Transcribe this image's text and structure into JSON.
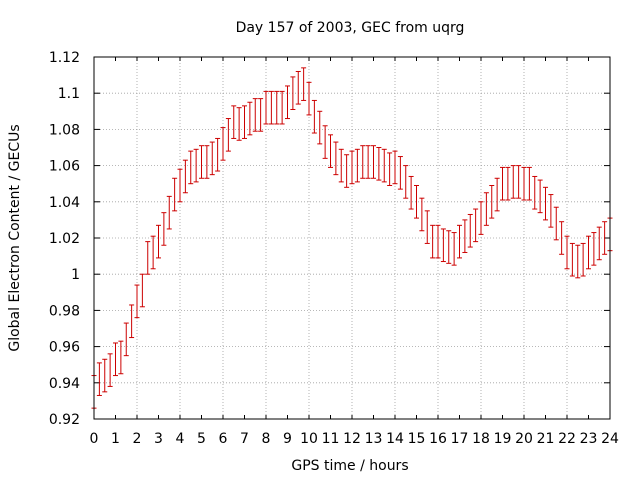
{
  "chart_data": {
    "type": "scatter",
    "title": "Day 157 of 2003, GEC from uqrg",
    "xlabel": "GPS time / hours",
    "ylabel": "Global Electron Content / GECUs",
    "xlim": [
      0,
      24
    ],
    "ylim": [
      0.92,
      1.12
    ],
    "grid": true,
    "x_ticks": [
      "0",
      "1",
      "2",
      "3",
      "4",
      "5",
      "6",
      "7",
      "8",
      "9",
      "10",
      "11",
      "12",
      "13",
      "14",
      "15",
      "16",
      "17",
      "18",
      "19",
      "20",
      "21",
      "22",
      "23",
      "24"
    ],
    "y_ticks": [
      "0.92",
      "0.94",
      "0.96",
      "0.98",
      "1",
      "1.02",
      "1.04",
      "1.06",
      "1.08",
      "1.1",
      "1.12"
    ],
    "error_bar": 0.009,
    "series": [
      {
        "name": "GEC",
        "color": "#cc0000",
        "x": [
          0,
          0.25,
          0.5,
          0.75,
          1,
          1.25,
          1.5,
          1.75,
          2,
          2.25,
          2.5,
          2.75,
          3,
          3.25,
          3.5,
          3.75,
          4,
          4.25,
          4.5,
          4.75,
          5,
          5.25,
          5.5,
          5.75,
          6,
          6.25,
          6.5,
          6.75,
          7,
          7.25,
          7.5,
          7.75,
          8,
          8.25,
          8.5,
          8.75,
          9,
          9.25,
          9.5,
          9.75,
          10,
          10.25,
          10.5,
          10.75,
          11,
          11.25,
          11.5,
          11.75,
          12,
          12.25,
          12.5,
          12.75,
          13,
          13.25,
          13.5,
          13.75,
          14,
          14.25,
          14.5,
          14.75,
          15,
          15.25,
          15.5,
          15.75,
          16,
          16.25,
          16.5,
          16.75,
          17,
          17.25,
          17.5,
          17.75,
          18,
          18.25,
          18.5,
          18.75,
          19,
          19.25,
          19.5,
          19.75,
          20,
          20.25,
          20.5,
          20.75,
          21,
          21.25,
          21.5,
          21.75,
          22,
          22.25,
          22.5,
          22.75,
          23,
          23.25,
          23.5,
          23.75,
          24
        ],
        "y": [
          0.935,
          0.942,
          0.944,
          0.947,
          0.953,
          0.954,
          0.964,
          0.974,
          0.985,
          0.991,
          1.009,
          1.012,
          1.018,
          1.025,
          1.034,
          1.044,
          1.049,
          1.054,
          1.059,
          1.06,
          1.062,
          1.062,
          1.064,
          1.066,
          1.072,
          1.077,
          1.084,
          1.083,
          1.084,
          1.086,
          1.088,
          1.088,
          1.092,
          1.092,
          1.092,
          1.092,
          1.095,
          1.1,
          1.103,
          1.105,
          1.097,
          1.087,
          1.081,
          1.073,
          1.068,
          1.064,
          1.06,
          1.057,
          1.059,
          1.06,
          1.062,
          1.062,
          1.062,
          1.061,
          1.06,
          1.058,
          1.059,
          1.056,
          1.051,
          1.045,
          1.04,
          1.033,
          1.026,
          1.018,
          1.018,
          1.016,
          1.015,
          1.014,
          1.018,
          1.021,
          1.024,
          1.027,
          1.031,
          1.036,
          1.04,
          1.044,
          1.05,
          1.05,
          1.051,
          1.051,
          1.05,
          1.05,
          1.045,
          1.043,
          1.039,
          1.035,
          1.028,
          1.02,
          1.012,
          1.008,
          1.007,
          1.008,
          1.012,
          1.014,
          1.017,
          1.02,
          1.022
        ]
      }
    ]
  }
}
